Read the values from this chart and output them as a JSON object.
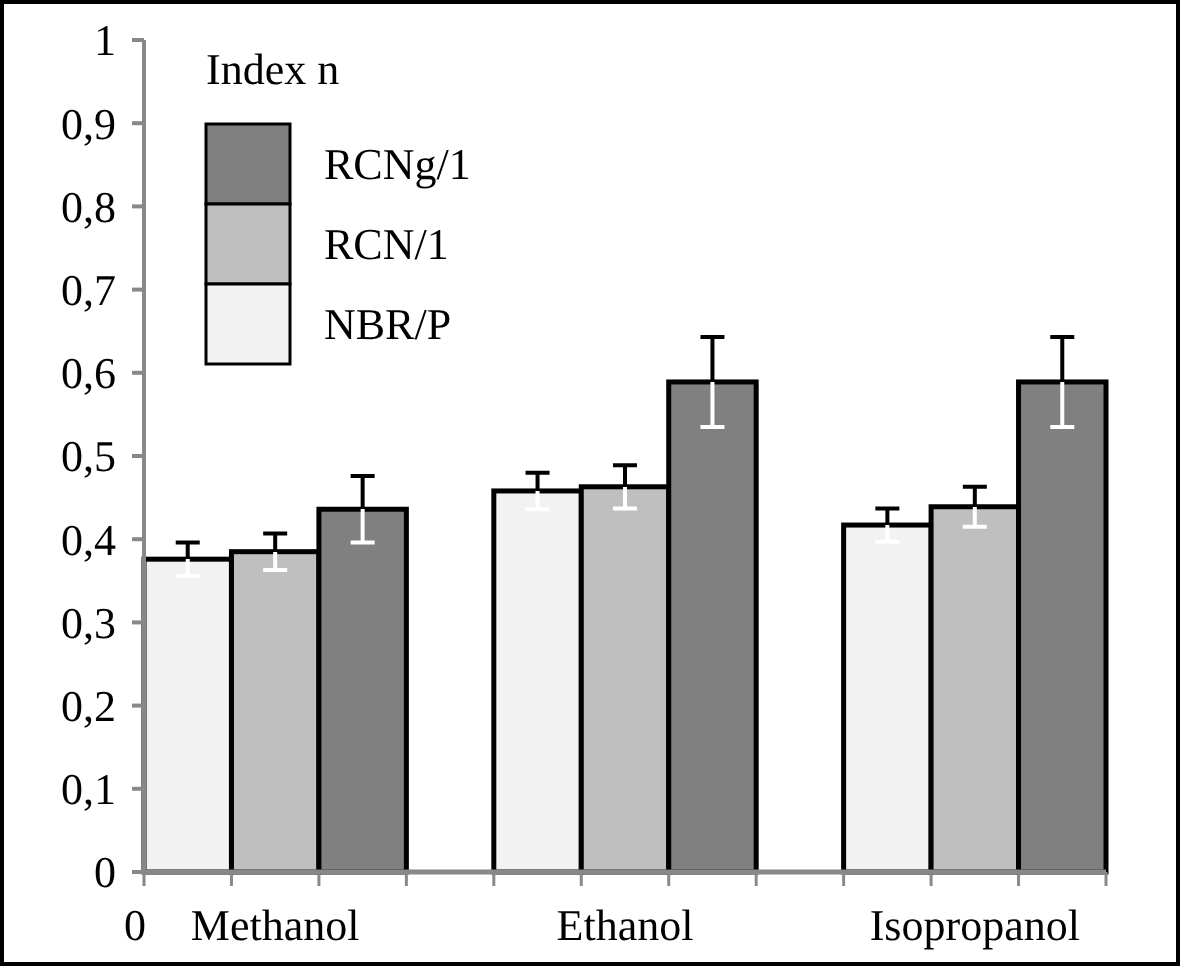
{
  "chart_data": {
    "type": "bar",
    "categories": [
      "Methanol",
      "Ethanol",
      "Isopropanol"
    ],
    "series": [
      {
        "name": "NBR/P",
        "color": "#f2f2f2",
        "values": [
          0.376,
          0.458,
          0.417
        ],
        "errors": [
          0.02,
          0.022,
          0.02
        ]
      },
      {
        "name": "RCN/1",
        "color": "#bfbfbf",
        "values": [
          0.385,
          0.463,
          0.439
        ],
        "errors": [
          0.022,
          0.026,
          0.024
        ]
      },
      {
        "name": "RCNg/1",
        "color": "#808080",
        "values": [
          0.436,
          0.589,
          0.589
        ],
        "errors": [
          0.04,
          0.054,
          0.054
        ]
      }
    ],
    "legend_title": "Index n",
    "legend": "top left",
    "ylim": [
      0,
      1
    ],
    "yticks": [
      0,
      {
        "value": 0.1,
        "label": "0,1"
      },
      {
        "value": 0.2,
        "label": "0,2"
      },
      {
        "value": 0.3,
        "label": "0,3"
      },
      {
        "value": 0.4,
        "label": "0,4"
      },
      {
        "value": 0.5,
        "label": "0,5"
      },
      {
        "value": 0.6,
        "label": "0,6"
      },
      {
        "value": 0.7,
        "label": "0,7"
      },
      {
        "value": 0.8,
        "label": "0,8"
      },
      {
        "value": 0.9,
        "label": "0,9"
      },
      1
    ],
    "grid": false,
    "annotations": [
      "0"
    ]
  }
}
